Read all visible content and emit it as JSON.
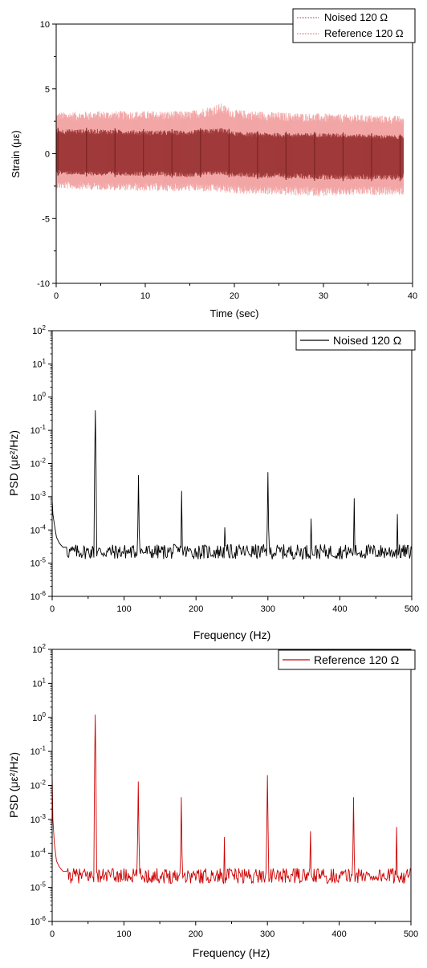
{
  "colors": {
    "noised": "#000000",
    "noised_dark_band": "#a03a3a",
    "reference": "#cc0000",
    "reference_band": "#f2a6a6"
  },
  "chart_data": [
    {
      "type": "line",
      "xlabel": "Time (sec)",
      "ylabel": "Strain (με)",
      "xlim": [
        0,
        40
      ],
      "ylim": [
        -10,
        10
      ],
      "xticks": [
        "0",
        "10",
        "20",
        "30",
        "40"
      ],
      "yticks": [
        "10",
        "5",
        "0",
        "-5",
        "-10"
      ],
      "legend_position": "top-right",
      "series": [
        {
          "name": "Noised 120 Ω",
          "color_key": "noised_dark_band",
          "x": [
            0,
            5,
            10,
            15,
            18.5,
            20,
            25,
            30,
            35,
            39
          ],
          "upper": [
            1.9,
            1.9,
            1.8,
            1.8,
            2.0,
            1.7,
            1.6,
            1.6,
            1.5,
            1.4
          ],
          "lower": [
            -1.6,
            -1.7,
            -1.7,
            -1.8,
            -1.6,
            -1.8,
            -1.9,
            -2.0,
            -2.0,
            -2.0
          ]
        },
        {
          "name": "Reference 120 Ω",
          "color_key": "reference_band",
          "x": [
            0,
            5,
            10,
            15,
            18.5,
            20,
            25,
            30,
            35,
            39
          ],
          "upper": [
            3.2,
            3.3,
            3.3,
            3.3,
            3.9,
            3.4,
            3.2,
            3.1,
            3.0,
            2.9
          ],
          "lower": [
            -2.7,
            -2.8,
            -2.9,
            -2.9,
            -3.0,
            -3.1,
            -3.2,
            -3.3,
            -3.2,
            -3.2
          ]
        }
      ]
    },
    {
      "type": "line",
      "xlabel": "Frequency (Hz)",
      "ylabel": "PSD (με²/Hz)",
      "xlim": [
        0,
        500
      ],
      "ylim": [
        1e-06,
        100
      ],
      "yscale": "log",
      "xticks": [
        "0",
        "100",
        "200",
        "300",
        "400",
        "500"
      ],
      "yticks_exp": [
        "2",
        "1",
        "0",
        "-1",
        "-2",
        "-3",
        "-4",
        "-5",
        "-6"
      ],
      "legend_position": "top-right",
      "series": [
        {
          "name": "Noised 120 Ω",
          "color_key": "noised",
          "baseline": 2.2e-05,
          "start": [
            [
              0,
              0.0008
            ],
            [
              1,
              0.0003
            ],
            [
              3,
              0.00015
            ],
            [
              6,
              6e-05
            ],
            [
              10,
              4e-05
            ],
            [
              15,
              3e-05
            ],
            [
              20,
              3e-05
            ]
          ],
          "peaks": [
            [
              60,
              0.4
            ],
            [
              120,
              0.0045
            ],
            [
              180,
              0.0015
            ],
            [
              240,
              0.00012
            ],
            [
              300,
              0.0055
            ],
            [
              360,
              0.00022
            ],
            [
              420,
              0.0009
            ],
            [
              480,
              0.0003
            ]
          ]
        }
      ]
    },
    {
      "type": "line",
      "xlabel": "Frequency (Hz)",
      "ylabel": "PSD (με²/Hz)",
      "xlim": [
        0,
        500
      ],
      "ylim": [
        1e-06,
        100
      ],
      "yscale": "log",
      "xticks": [
        "0",
        "100",
        "200",
        "300",
        "400",
        "500"
      ],
      "yticks_exp": [
        "2",
        "1",
        "0",
        "-1",
        "-2",
        "-3",
        "-4",
        "-5",
        "-6"
      ],
      "legend_position": "top-right",
      "series": [
        {
          "name": "Reference 120 Ω",
          "color_key": "reference",
          "baseline": 2.2e-05,
          "start": [
            [
              0,
              0.02
            ],
            [
              1,
              0.001
            ],
            [
              3,
              0.0002
            ],
            [
              6,
              6e-05
            ],
            [
              10,
              4e-05
            ],
            [
              15,
              3e-05
            ],
            [
              20,
              3e-05
            ]
          ],
          "peaks": [
            [
              60,
              1.2
            ],
            [
              120,
              0.013
            ],
            [
              180,
              0.0045
            ],
            [
              240,
              0.0003
            ],
            [
              300,
              0.02
            ],
            [
              360,
              0.00045
            ],
            [
              420,
              0.0045
            ],
            [
              480,
              0.0006
            ]
          ]
        }
      ]
    }
  ]
}
